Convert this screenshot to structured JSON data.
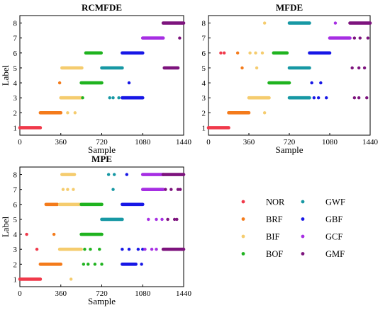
{
  "legend": [
    {
      "label": "NOR",
      "color": "#f0394a"
    },
    {
      "label": "BRF",
      "color": "#f47b1b"
    },
    {
      "label": "BIF",
      "color": "#f5cc6e"
    },
    {
      "label": "BOF",
      "color": "#1fb31f"
    },
    {
      "label": "GWF",
      "color": "#1798a4"
    },
    {
      "label": "GBF",
      "color": "#1717e6"
    },
    {
      "label": "GCF",
      "color": "#a62ee3"
    },
    {
      "label": "GMF",
      "color": "#7d137d"
    }
  ],
  "chart_data": [
    {
      "type": "scatter",
      "title": "RCMFDE",
      "xlabel": "Sample",
      "ylabel": "Label",
      "xlim": [
        0,
        1440
      ],
      "ylim": [
        0.5,
        8.5
      ],
      "xticks": [
        "0",
        "360",
        "720",
        "1080",
        "1440"
      ],
      "yticks": [
        "1",
        "2",
        "3",
        "4",
        "5",
        "6",
        "7",
        "8"
      ],
      "series": [
        {
          "name": "NOR",
          "bands": [
            [
              0,
              180,
              1
            ]
          ],
          "points": []
        },
        {
          "name": "BRF",
          "bands": [
            [
              180,
              360,
              2
            ]
          ],
          "points": [
            [
              350,
              4
            ]
          ]
        },
        {
          "name": "BIF",
          "bands": [
            [
              360,
              540,
              3
            ],
            [
              370,
              545,
              5
            ]
          ],
          "points": [
            [
              420,
              2
            ],
            [
              485,
              2
            ]
          ]
        },
        {
          "name": "BOF",
          "bands": [
            [
              540,
              720,
              4
            ],
            [
              580,
              715,
              6
            ]
          ],
          "points": [
            [
              552,
              3
            ]
          ]
        },
        {
          "name": "GWF",
          "bands": [
            [
              720,
              900,
              5
            ]
          ],
          "points": [
            [
              790,
              3
            ],
            [
              820,
              3
            ],
            [
              870,
              3
            ]
          ]
        },
        {
          "name": "GBF",
          "bands": [
            [
              900,
              1080,
              3
            ],
            [
              900,
              1080,
              6
            ]
          ],
          "points": [
            [
              960,
              4
            ]
          ]
        },
        {
          "name": "GCF",
          "bands": [
            [
              1080,
              1260,
              7
            ]
          ],
          "points": []
        },
        {
          "name": "GMF",
          "bands": [
            [
              1260,
              1440,
              8
            ],
            [
              1270,
              1390,
              5
            ]
          ],
          "points": [
            [
              1405,
              7
            ]
          ]
        }
      ]
    },
    {
      "type": "scatter",
      "title": "MFDE",
      "xlabel": "Sample",
      "ylabel": "",
      "xlim": [
        0,
        1440
      ],
      "ylim": [
        0.5,
        8.5
      ],
      "xticks": [
        "0",
        "360",
        "720",
        "1080",
        "1440"
      ],
      "yticks": [
        "1",
        "2",
        "3",
        "4",
        "5",
        "6",
        "7",
        "8"
      ],
      "series": [
        {
          "name": "NOR",
          "bands": [
            [
              0,
              180,
              1
            ]
          ],
          "points": [
            [
              110,
              6
            ],
            [
              140,
              6
            ]
          ]
        },
        {
          "name": "BRF",
          "bands": [
            [
              180,
              360,
              2
            ]
          ],
          "points": [
            [
              260,
              6
            ],
            [
              300,
              5
            ]
          ]
        },
        {
          "name": "BIF",
          "bands": [
            [
              360,
              540,
              3
            ]
          ],
          "points": [
            [
              430,
              5
            ],
            [
              500,
              2
            ],
            [
              500,
              8
            ],
            [
              370,
              6
            ],
            [
              420,
              6
            ],
            [
              480,
              6
            ]
          ]
        },
        {
          "name": "BOF",
          "bands": [
            [
              540,
              720,
              4
            ],
            [
              580,
              700,
              6
            ]
          ],
          "points": []
        },
        {
          "name": "GWF",
          "bands": [
            [
              720,
              900,
              5
            ],
            [
              720,
              900,
              8
            ],
            [
              720,
              900,
              3
            ]
          ],
          "points": []
        },
        {
          "name": "GBF",
          "bands": [
            [
              900,
              1080,
              6
            ]
          ],
          "points": [
            [
              920,
              4
            ],
            [
              940,
              3
            ],
            [
              980,
              3
            ],
            [
              1000,
              4
            ],
            [
              1050,
              3
            ]
          ]
        },
        {
          "name": "GCF",
          "bands": [
            [
              1080,
              1260,
              7
            ]
          ],
          "points": [
            [
              1130,
              8
            ]
          ]
        },
        {
          "name": "GMF",
          "bands": [
            [
              1260,
              1440,
              8
            ]
          ],
          "points": [
            [
              1280,
              5
            ],
            [
              1340,
              5
            ],
            [
              1390,
              5
            ],
            [
              1300,
              7
            ],
            [
              1350,
              7
            ],
            [
              1420,
              7
            ],
            [
              1300,
              3
            ],
            [
              1340,
              3
            ],
            [
              1410,
              3
            ]
          ]
        }
      ]
    },
    {
      "type": "scatter",
      "title": "MPE",
      "xlabel": "Sample",
      "ylabel": "Label",
      "xlim": [
        0,
        1440
      ],
      "ylim": [
        0.5,
        8.5
      ],
      "xticks": [
        "0",
        "360",
        "720",
        "1080",
        "1440"
      ],
      "yticks": [
        "1",
        "2",
        "3",
        "4",
        "5",
        "6",
        "7",
        "8"
      ],
      "series": [
        {
          "name": "NOR",
          "bands": [
            [
              0,
              180,
              1
            ]
          ],
          "points": [
            [
              60,
              4
            ],
            [
              150,
              3
            ]
          ]
        },
        {
          "name": "BRF",
          "bands": [
            [
              180,
              360,
              2
            ],
            [
              230,
              330,
              6
            ]
          ],
          "points": [
            [
              300,
              4
            ]
          ]
        },
        {
          "name": "BIF",
          "bands": [
            [
              350,
              540,
              3
            ],
            [
              350,
              540,
              6
            ],
            [
              370,
              480,
              8
            ]
          ],
          "points": [
            [
              380,
              7
            ],
            [
              420,
              7
            ],
            [
              470,
              7
            ],
            [
              450,
              1
            ]
          ]
        },
        {
          "name": "BOF",
          "bands": [
            [
              540,
              720,
              4
            ],
            [
              540,
              720,
              6
            ]
          ],
          "points": [
            [
              560,
              2
            ],
            [
              600,
              2
            ],
            [
              660,
              2
            ],
            [
              720,
              2
            ],
            [
              570,
              3
            ],
            [
              620,
              3
            ],
            [
              700,
              3
            ]
          ]
        },
        {
          "name": "GWF",
          "bands": [
            [
              720,
              900,
              5
            ]
          ],
          "points": [
            [
              780,
              8
            ],
            [
              830,
              8
            ],
            [
              820,
              7
            ]
          ]
        },
        {
          "name": "GBF",
          "bands": [
            [
              900,
              1080,
              6
            ],
            [
              900,
              1020,
              2
            ]
          ],
          "points": [
            [
              900,
              3
            ],
            [
              960,
              3
            ],
            [
              1040,
              3
            ],
            [
              1080,
              3
            ],
            [
              940,
              8
            ],
            [
              1070,
              2
            ]
          ]
        },
        {
          "name": "GCF",
          "bands": [
            [
              1080,
              1260,
              7
            ],
            [
              1080,
              1260,
              8
            ]
          ],
          "points": [
            [
              1100,
              3
            ],
            [
              1160,
              3
            ],
            [
              1200,
              3
            ],
            [
              1130,
              5
            ],
            [
              1200,
              5
            ],
            [
              1250,
              5
            ]
          ]
        },
        {
          "name": "GMF",
          "bands": [
            [
              1260,
              1440,
              8
            ],
            [
              1260,
              1440,
              3
            ]
          ],
          "points": [
            [
              1280,
              7
            ],
            [
              1330,
              7
            ],
            [
              1390,
              7
            ],
            [
              1410,
              7
            ],
            [
              1300,
              5
            ],
            [
              1360,
              5
            ],
            [
              1380,
              5
            ]
          ]
        }
      ]
    }
  ]
}
